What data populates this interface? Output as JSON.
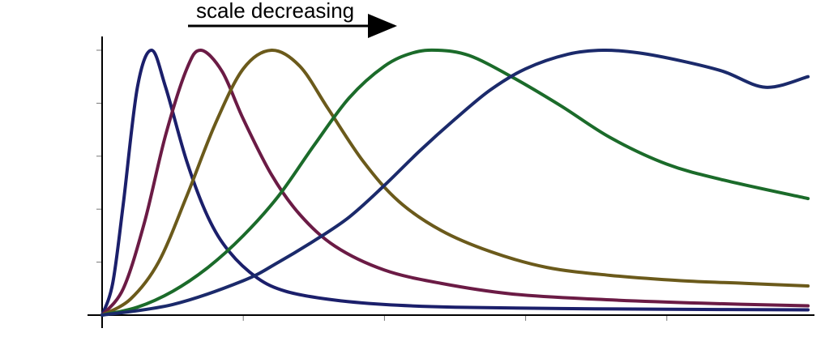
{
  "chart_data": {
    "type": "line",
    "title": "",
    "xlabel": "",
    "ylabel": "",
    "xlim": [
      0,
      1
    ],
    "ylim": [
      0,
      1
    ],
    "grid": false,
    "legend": "none",
    "annotation": {
      "text": "scale decreasing",
      "arrow": "right"
    },
    "x_ticks": [
      0.2,
      0.4,
      0.6,
      0.8
    ],
    "y_ticks": [
      0.2,
      0.4,
      0.6,
      0.8,
      1.0
    ],
    "series": [
      {
        "color": "#1b1f6b",
        "peak_x": 0.07,
        "end_y": 0.02,
        "x": [
          0,
          0.015,
          0.03,
          0.05,
          0.07,
          0.09,
          0.12,
          0.15,
          0.18,
          0.22,
          0.26,
          0.32,
          0.4,
          0.5,
          0.65,
          0.8,
          1.0
        ],
        "values": [
          0,
          0.12,
          0.42,
          0.86,
          1.0,
          0.86,
          0.58,
          0.37,
          0.24,
          0.14,
          0.09,
          0.06,
          0.04,
          0.03,
          0.025,
          0.022,
          0.02
        ]
      },
      {
        "color": "#6b1b45",
        "peak_x": 0.14,
        "end_y": 0.035,
        "x": [
          0,
          0.03,
          0.06,
          0.09,
          0.12,
          0.14,
          0.17,
          0.2,
          0.24,
          0.28,
          0.33,
          0.4,
          0.48,
          0.58,
          0.7,
          0.85,
          1.0
        ],
        "values": [
          0,
          0.1,
          0.35,
          0.68,
          0.93,
          1.0,
          0.92,
          0.74,
          0.53,
          0.38,
          0.26,
          0.17,
          0.12,
          0.08,
          0.06,
          0.045,
          0.035
        ]
      },
      {
        "color": "#6b5a1b",
        "peak_x": 0.24,
        "end_y": 0.11,
        "x": [
          0,
          0.04,
          0.08,
          0.12,
          0.16,
          0.2,
          0.24,
          0.28,
          0.32,
          0.37,
          0.42,
          0.48,
          0.55,
          0.63,
          0.72,
          0.82,
          0.91,
          1.0
        ],
        "values": [
          0,
          0.06,
          0.2,
          0.45,
          0.72,
          0.93,
          1.0,
          0.94,
          0.78,
          0.58,
          0.43,
          0.32,
          0.24,
          0.18,
          0.15,
          0.13,
          0.12,
          0.11
        ]
      },
      {
        "color": "#1b6b2a",
        "peak_x": 0.475,
        "end_y": 0.44,
        "x": [
          0,
          0.05,
          0.1,
          0.15,
          0.2,
          0.25,
          0.3,
          0.35,
          0.4,
          0.44,
          0.475,
          0.52,
          0.58,
          0.65,
          0.72,
          0.8,
          0.88,
          1.0
        ],
        "values": [
          0,
          0.03,
          0.09,
          0.18,
          0.3,
          0.45,
          0.64,
          0.82,
          0.94,
          0.99,
          1.0,
          0.98,
          0.9,
          0.79,
          0.67,
          0.57,
          0.51,
          0.44
        ]
      },
      {
        "color": "#1b2a6b",
        "peak_x": 0.71,
        "end_y": 0.9,
        "x": [
          0,
          0.1,
          0.2,
          0.25,
          0.3,
          0.35,
          0.4,
          0.45,
          0.5,
          0.55,
          0.6,
          0.66,
          0.71,
          0.76,
          0.82,
          0.88,
          0.94,
          1.0
        ],
        "values": [
          0,
          0.04,
          0.13,
          0.2,
          0.28,
          0.37,
          0.49,
          0.62,
          0.74,
          0.85,
          0.93,
          0.985,
          1.0,
          0.99,
          0.96,
          0.92,
          0.86,
          0.9
        ]
      }
    ]
  }
}
